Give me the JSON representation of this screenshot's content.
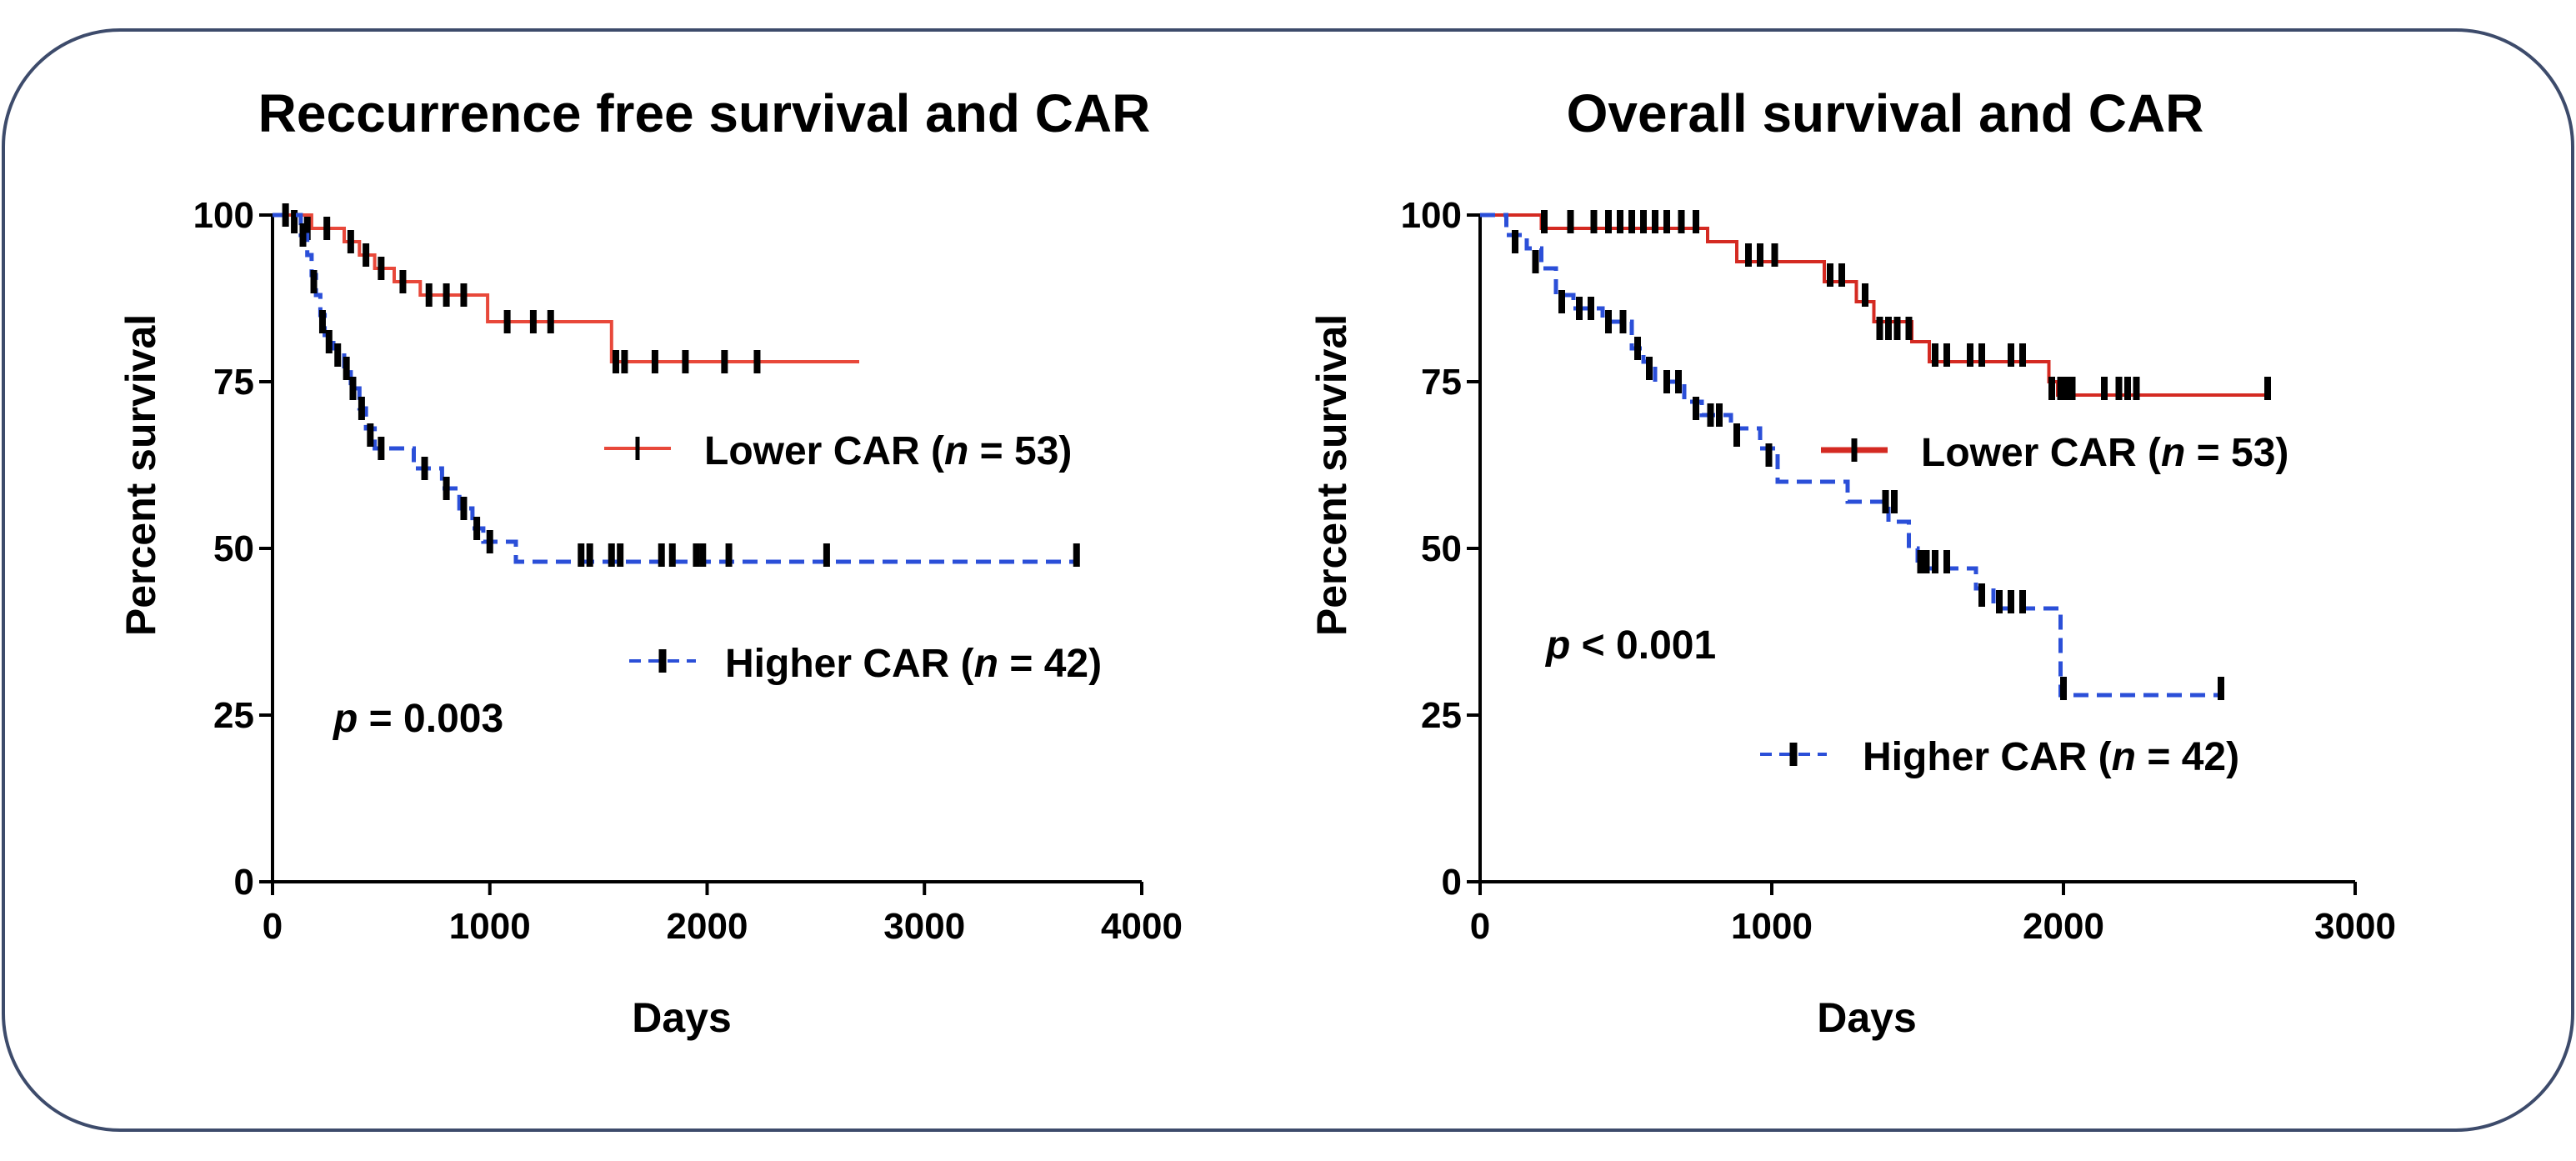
{
  "chart_data": [
    {
      "type": "line",
      "subtype": "kaplan-meier",
      "title": "Reccurrence free survival and CAR",
      "xlabel": "Days",
      "ylabel": "Percent survival",
      "xlim": [
        0,
        4000
      ],
      "ylim": [
        0,
        100
      ],
      "xticks": [
        0,
        1000,
        2000,
        3000,
        4000
      ],
      "yticks": [
        0,
        25,
        50,
        75,
        100
      ],
      "grid": false,
      "annotation": {
        "prefix": "p",
        "text": " = 0.003",
        "placement": "lower-left"
      },
      "series": [
        {
          "name": "Lower CAR",
          "n": "53",
          "legend_text": "Lower CAR (",
          "legend_italic": "n",
          "legend_suffix": " = 53)",
          "color": "#e8483a",
          "dash": "solid",
          "steps": [
            [
              0,
              100
            ],
            [
              180,
              98
            ],
            [
              330,
              96
            ],
            [
              400,
              94
            ],
            [
              470,
              92
            ],
            [
              560,
              90
            ],
            [
              680,
              88
            ],
            [
              990,
              84
            ],
            [
              1560,
              78
            ],
            [
              2700,
              78
            ]
          ],
          "censored": [
            [
              100,
              99
            ],
            [
              160,
              98
            ],
            [
              250,
              98
            ],
            [
              360,
              96
            ],
            [
              430,
              94
            ],
            [
              500,
              92
            ],
            [
              600,
              90
            ],
            [
              720,
              88
            ],
            [
              800,
              88
            ],
            [
              880,
              88
            ],
            [
              1080,
              84
            ],
            [
              1200,
              84
            ],
            [
              1280,
              84
            ],
            [
              1580,
              78
            ],
            [
              1620,
              78
            ],
            [
              1760,
              78
            ],
            [
              1900,
              78
            ],
            [
              2080,
              78
            ],
            [
              2230,
              78
            ]
          ]
        },
        {
          "name": "Higher CAR",
          "n": "42",
          "legend_text": "Higher CAR (",
          "legend_italic": "n",
          "legend_suffix": " = 42)",
          "color": "#2b4fd8",
          "dash": "dashed",
          "steps": [
            [
              0,
              100
            ],
            [
              130,
              97
            ],
            [
              160,
              94
            ],
            [
              180,
              91
            ],
            [
              200,
              88
            ],
            [
              220,
              85
            ],
            [
              240,
              82
            ],
            [
              280,
              80
            ],
            [
              330,
              77
            ],
            [
              360,
              74
            ],
            [
              400,
              71
            ],
            [
              430,
              68
            ],
            [
              470,
              65
            ],
            [
              650,
              62
            ],
            [
              780,
              59
            ],
            [
              860,
              56
            ],
            [
              920,
              53
            ],
            [
              970,
              51
            ],
            [
              1120,
              48
            ],
            [
              3700,
              48
            ]
          ],
          "censored": [
            [
              60,
              100
            ],
            [
              140,
              97
            ],
            [
              190,
              90
            ],
            [
              230,
              84
            ],
            [
              260,
              81
            ],
            [
              300,
              79
            ],
            [
              340,
              77
            ],
            [
              370,
              74
            ],
            [
              410,
              71
            ],
            [
              450,
              67
            ],
            [
              500,
              65
            ],
            [
              700,
              62
            ],
            [
              800,
              59
            ],
            [
              880,
              56
            ],
            [
              940,
              53
            ],
            [
              1000,
              51
            ],
            [
              1420,
              49
            ],
            [
              1460,
              49
            ],
            [
              1560,
              49
            ],
            [
              1600,
              49
            ],
            [
              1790,
              49
            ],
            [
              1840,
              49
            ],
            [
              1950,
              49
            ],
            [
              1980,
              49
            ],
            [
              2100,
              49
            ],
            [
              2550,
              49
            ],
            [
              3700,
              49
            ]
          ]
        }
      ]
    },
    {
      "type": "line",
      "subtype": "kaplan-meier",
      "title": "Overall survival and CAR",
      "xlabel": "Days",
      "ylabel": "Percent survival",
      "xlim": [
        0,
        3000
      ],
      "ylim": [
        0,
        100
      ],
      "xticks": [
        0,
        1000,
        2000,
        3000
      ],
      "yticks": [
        0,
        25,
        50,
        75,
        100
      ],
      "grid": false,
      "annotation": {
        "prefix": "p",
        "text": " < 0.001",
        "placement": "lower-left"
      },
      "series": [
        {
          "name": "Lower CAR",
          "n": "53",
          "legend_text": "Lower CAR (",
          "legend_italic": "n",
          "legend_suffix": " = 53)",
          "color": "#d42a22",
          "dash": "solid",
          "steps": [
            [
              0,
              100
            ],
            [
              210,
              98
            ],
            [
              780,
              96
            ],
            [
              880,
              93
            ],
            [
              1180,
              90
            ],
            [
              1290,
              87
            ],
            [
              1350,
              84
            ],
            [
              1480,
              81
            ],
            [
              1540,
              78
            ],
            [
              1950,
              75
            ],
            [
              1980,
              73
            ],
            [
              2700,
              73
            ]
          ],
          "censored": [
            [
              220,
              99
            ],
            [
              310,
              99
            ],
            [
              390,
              99
            ],
            [
              440,
              99
            ],
            [
              480,
              99
            ],
            [
              520,
              99
            ],
            [
              560,
              99
            ],
            [
              600,
              99
            ],
            [
              640,
              99
            ],
            [
              690,
              99
            ],
            [
              740,
              99
            ],
            [
              920,
              94
            ],
            [
              960,
              94
            ],
            [
              1010,
              94
            ],
            [
              1200,
              91
            ],
            [
              1240,
              91
            ],
            [
              1320,
              88
            ],
            [
              1370,
              83
            ],
            [
              1400,
              83
            ],
            [
              1430,
              83
            ],
            [
              1470,
              83
            ],
            [
              1560,
              79
            ],
            [
              1600,
              79
            ],
            [
              1680,
              79
            ],
            [
              1720,
              79
            ],
            [
              1820,
              79
            ],
            [
              1860,
              79
            ],
            [
              1960,
              74
            ],
            [
              1990,
              74
            ],
            [
              2010,
              74
            ],
            [
              2030,
              74
            ],
            [
              2140,
              74
            ],
            [
              2190,
              74
            ],
            [
              2220,
              74
            ],
            [
              2250,
              74
            ],
            [
              2700,
              74
            ]
          ]
        },
        {
          "name": "Higher CAR",
          "n": "42",
          "legend_text": "Higher CAR (",
          "legend_italic": "n",
          "legend_suffix": " = 42)",
          "color": "#2b4fd8",
          "dash": "dashed",
          "steps": [
            [
              0,
              100
            ],
            [
              90,
              97
            ],
            [
              160,
              95
            ],
            [
              210,
              92
            ],
            [
              260,
              88
            ],
            [
              320,
              86
            ],
            [
              420,
              84
            ],
            [
              520,
              80
            ],
            [
              560,
              78
            ],
            [
              600,
              75
            ],
            [
              700,
              72
            ],
            [
              760,
              70
            ],
            [
              860,
              68
            ],
            [
              960,
              65
            ],
            [
              1020,
              60
            ],
            [
              1260,
              57
            ],
            [
              1400,
              54
            ],
            [
              1470,
              50
            ],
            [
              1500,
              47
            ],
            [
              1700,
              44
            ],
            [
              1760,
              41
            ],
            [
              1990,
              28
            ],
            [
              2550,
              28
            ]
          ],
          "censored": [
            [
              120,
              96
            ],
            [
              190,
              93
            ],
            [
              280,
              87
            ],
            [
              340,
              86
            ],
            [
              380,
              86
            ],
            [
              440,
              84
            ],
            [
              490,
              84
            ],
            [
              540,
              80
            ],
            [
              580,
              77
            ],
            [
              640,
              75
            ],
            [
              680,
              75
            ],
            [
              740,
              71
            ],
            [
              790,
              70
            ],
            [
              820,
              70
            ],
            [
              880,
              67
            ],
            [
              990,
              64
            ],
            [
              1390,
              57
            ],
            [
              1420,
              57
            ],
            [
              1510,
              48
            ],
            [
              1530,
              48
            ],
            [
              1560,
              48
            ],
            [
              1600,
              48
            ],
            [
              1720,
              43
            ],
            [
              1780,
              42
            ],
            [
              1820,
              42
            ],
            [
              1860,
              42
            ],
            [
              2000,
              29
            ],
            [
              2540,
              29
            ]
          ]
        }
      ]
    }
  ]
}
